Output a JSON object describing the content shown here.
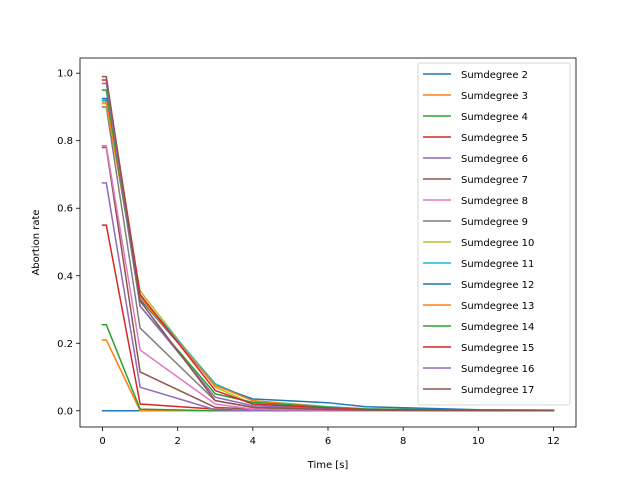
{
  "chart_data": {
    "type": "line",
    "title": "",
    "xlabel": "Time [s]",
    "ylabel": "Abortion rate",
    "xlim": [
      -0.6,
      12.6
    ],
    "ylim": [
      -0.048,
      1.045
    ],
    "xticks": [
      0,
      2,
      4,
      6,
      8,
      10,
      12
    ],
    "xtick_labels": [
      "0",
      "2",
      "4",
      "6",
      "8",
      "10",
      "12"
    ],
    "yticks": [
      0.0,
      0.2,
      0.4,
      0.6,
      0.8,
      1.0
    ],
    "ytick_labels": [
      "0.0",
      "0.2",
      "0.4",
      "0.6",
      "0.8",
      "1.0"
    ],
    "grid": false,
    "legend_position": "top-right",
    "x": [
      0,
      0.1,
      1,
      3,
      4,
      6,
      7,
      10,
      12
    ],
    "series": [
      {
        "name": "Sumdegree 2",
        "color": "#1f77b4",
        "values": [
          0.0,
          0.0,
          0.0,
          0.0,
          0.0,
          0.0,
          0.0,
          0.0,
          0.0
        ]
      },
      {
        "name": "Sumdegree 3",
        "color": "#ff7f0e",
        "values": [
          0.21,
          0.21,
          0.0,
          0.0,
          0.0,
          0.0,
          0.0,
          0.0,
          0.0
        ]
      },
      {
        "name": "Sumdegree 4",
        "color": "#2ca02c",
        "values": [
          0.255,
          0.255,
          0.005,
          0.0,
          0.0,
          0.0,
          0.0,
          0.0,
          0.0
        ]
      },
      {
        "name": "Sumdegree 5",
        "color": "#d62728",
        "values": [
          0.55,
          0.55,
          0.02,
          0.005,
          0.0,
          0.0,
          0.0,
          0.0,
          0.0
        ]
      },
      {
        "name": "Sumdegree 6",
        "color": "#9467bd",
        "values": [
          0.675,
          0.675,
          0.07,
          0.003,
          0.0,
          0.0,
          0.0,
          0.0,
          0.0
        ]
      },
      {
        "name": "Sumdegree 7",
        "color": "#8c564b",
        "values": [
          0.78,
          0.78,
          0.115,
          0.01,
          0.005,
          0.002,
          0.0,
          0.0,
          0.0
        ]
      },
      {
        "name": "Sumdegree 8",
        "color": "#e377c2",
        "values": [
          0.785,
          0.785,
          0.18,
          0.02,
          0.005,
          0.002,
          0.0,
          0.0,
          0.0
        ]
      },
      {
        "name": "Sumdegree 9",
        "color": "#7f7f7f",
        "values": [
          0.9,
          0.9,
          0.245,
          0.03,
          0.01,
          0.004,
          0.002,
          0.0,
          0.0
        ]
      },
      {
        "name": "Sumdegree 10",
        "color": "#bcbd22",
        "values": [
          0.91,
          0.91,
          0.355,
          0.07,
          0.02,
          0.008,
          0.004,
          0.001,
          0.0
        ]
      },
      {
        "name": "Sumdegree 11",
        "color": "#17becf",
        "values": [
          0.92,
          0.92,
          0.34,
          0.08,
          0.03,
          0.012,
          0.006,
          0.002,
          0.001
        ]
      },
      {
        "name": "Sumdegree 12",
        "color": "#1f77b4",
        "values": [
          0.925,
          0.925,
          0.33,
          0.075,
          0.035,
          0.024,
          0.012,
          0.003,
          0.002
        ]
      },
      {
        "name": "Sumdegree 13",
        "color": "#ff7f0e",
        "values": [
          0.915,
          0.915,
          0.335,
          0.075,
          0.03,
          0.01,
          0.005,
          0.001,
          0.0
        ]
      },
      {
        "name": "Sumdegree 14",
        "color": "#2ca02c",
        "values": [
          0.95,
          0.95,
          0.31,
          0.05,
          0.025,
          0.01,
          0.005,
          0.002,
          0.001
        ]
      },
      {
        "name": "Sumdegree 15",
        "color": "#d62728",
        "values": [
          0.98,
          0.98,
          0.345,
          0.06,
          0.02,
          0.008,
          0.004,
          0.001,
          0.0
        ]
      },
      {
        "name": "Sumdegree 16",
        "color": "#9467bd",
        "values": [
          0.97,
          0.97,
          0.31,
          0.04,
          0.015,
          0.005,
          0.002,
          0.0,
          0.0
        ]
      },
      {
        "name": "Sumdegree 17",
        "color": "#8c564b",
        "values": [
          0.99,
          0.99,
          0.325,
          0.03,
          0.01,
          0.004,
          0.002,
          0.0,
          0.0
        ]
      }
    ]
  }
}
